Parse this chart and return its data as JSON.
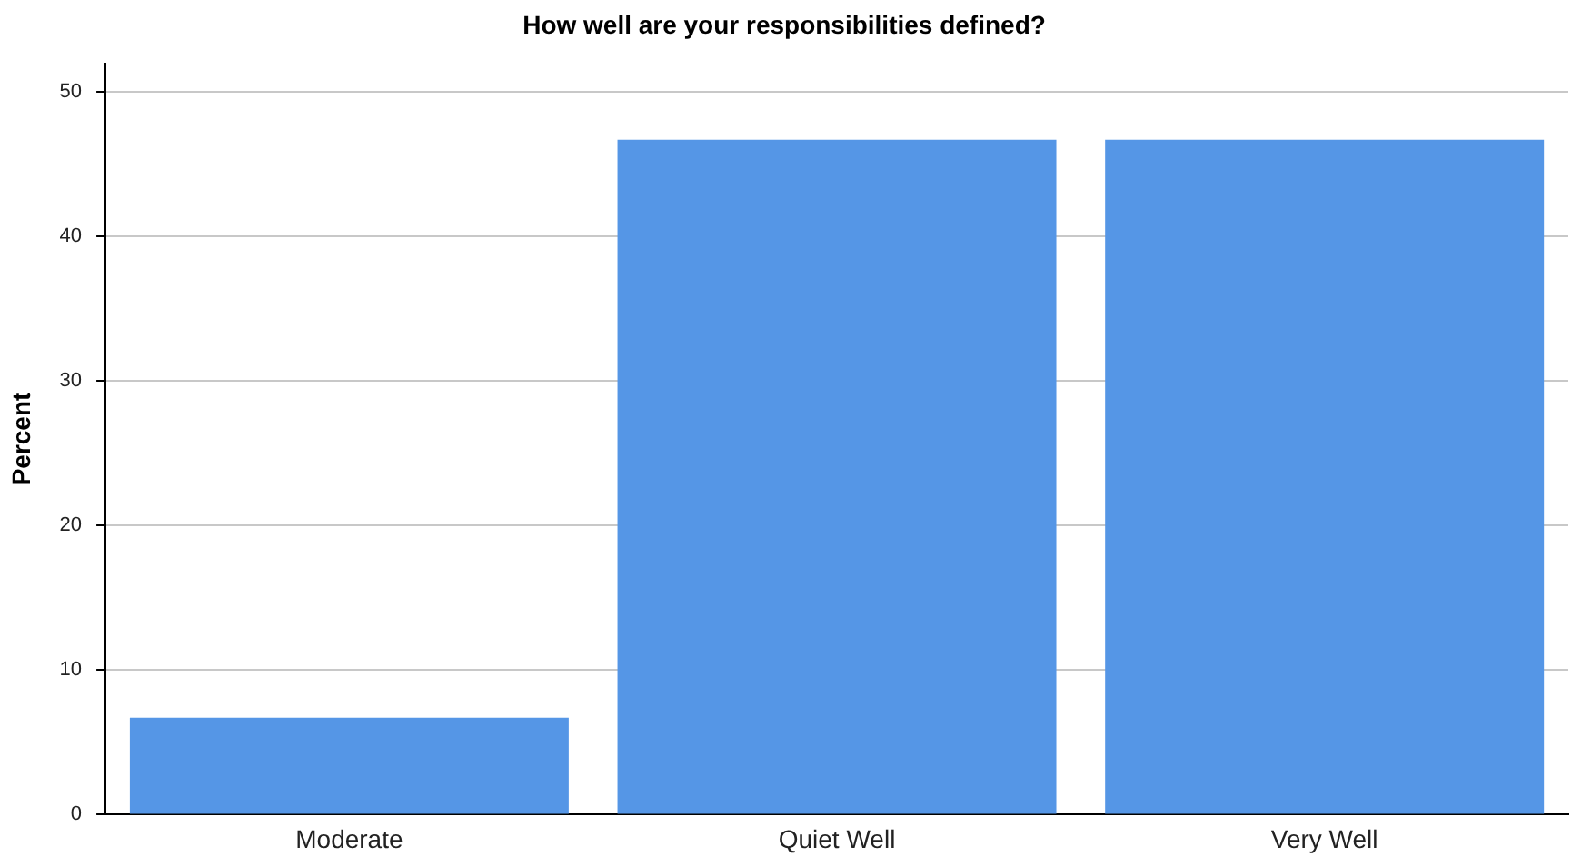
{
  "chart_data": {
    "type": "bar",
    "title": "How well are your responsibilities defined?",
    "ylabel": "Percent",
    "categories": [
      "Moderate",
      "Quiet Well",
      "Very Well"
    ],
    "values": [
      6.7,
      46.7,
      46.7
    ],
    "color": "#5596e6",
    "ylim": [
      0,
      52
    ],
    "yticks": [
      0,
      10,
      20,
      30,
      40,
      50
    ],
    "grid": "y",
    "legend": false
  }
}
